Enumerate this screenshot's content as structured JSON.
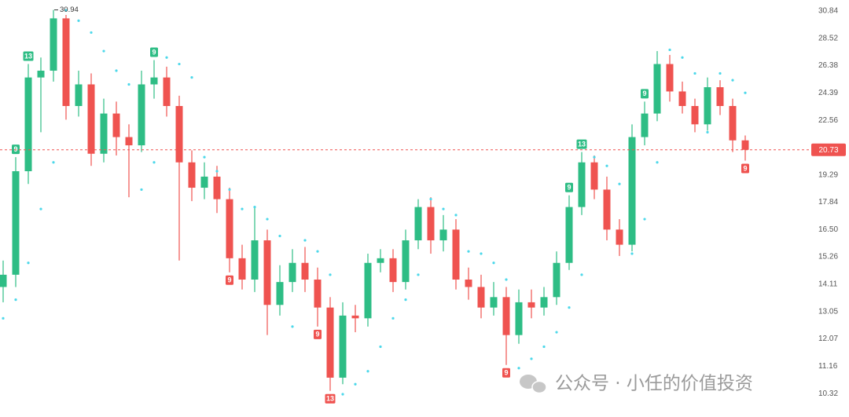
{
  "chart_data": {
    "type": "candlestick",
    "log": true,
    "ylim": [
      9.65,
      31.83
    ],
    "yticks": [
      10.32,
      11.16,
      12.07,
      13.05,
      14.11,
      15.26,
      {
        "value": 16.5,
        "label": "16.50"
      },
      17.84,
      19.29,
      22.56,
      24.39,
      26.38,
      28.52,
      30.84
    ],
    "open": [
      14,
      14.5,
      19.5,
      25.5,
      26,
      30.2,
      23.5,
      25,
      20.5,
      23,
      21.5,
      21,
      25,
      25.5,
      23.5,
      20,
      18.6,
      19.2,
      18,
      15.2,
      14.3,
      16,
      13.3,
      14.2,
      15,
      14.3,
      13.2,
      10.8,
      12.9,
      12.8,
      15,
      15.2,
      14.2,
      16,
      17.6,
      16,
      16.5,
      14.3,
      14,
      13.2,
      13.6,
      12.2,
      13.4,
      13.2,
      13.6,
      15,
      17.6,
      20,
      18.5,
      16.5,
      15.8,
      21.5,
      23,
      26.5,
      24.5,
      23.5,
      22.3,
      24.8,
      23.5,
      21.3
    ],
    "high": [
      15.1,
      20.3,
      26.5,
      27,
      30.94,
      30.5,
      26,
      25.8,
      24,
      23.8,
      22.3,
      26,
      26.8,
      26.3,
      24.2,
      20.7,
      20,
      19.8,
      18.6,
      15.8,
      17.6,
      16.5,
      14.9,
      15.6,
      15.7,
      14.8,
      13.6,
      13.4,
      13.3,
      15.4,
      15.6,
      15.6,
      16.5,
      18,
      18.1,
      17.2,
      17,
      14.8,
      14.5,
      14.2,
      14,
      13.9,
      13.9,
      14,
      15.5,
      18.2,
      20.6,
      20.4,
      19.2,
      17,
      22.3,
      23.8,
      27.5,
      27.2,
      25.2,
      24,
      25.5,
      25.3,
      24,
      21.6
    ],
    "low": [
      13.4,
      14,
      18.8,
      21.8,
      25.2,
      22.6,
      22.8,
      19.8,
      20,
      20.4,
      18.1,
      20.6,
      24,
      22.8,
      15.1,
      17.9,
      18,
      17.3,
      14.6,
      13.9,
      13.8,
      12.2,
      12.9,
      13.8,
      13.8,
      12.5,
      10.4,
      10.6,
      12.3,
      12.5,
      14.6,
      13.8,
      13.9,
      15.6,
      15.4,
      15.5,
      13.9,
      13.5,
      12.8,
      12.9,
      11.2,
      11.9,
      12.8,
      12.9,
      13.3,
      14.7,
      17.2,
      18,
      16,
      15.3,
      15.5,
      21,
      22.5,
      23.8,
      23,
      21.8,
      21.9,
      22.9,
      20.6,
      20.1
    ],
    "close": [
      14.5,
      19.5,
      25.5,
      26,
      30.2,
      23.5,
      25,
      20.5,
      23,
      21.5,
      21,
      25,
      25.5,
      23.5,
      20,
      18.6,
      19.2,
      18,
      15.2,
      14.3,
      16,
      13.3,
      14.2,
      15,
      14.3,
      13.2,
      10.8,
      12.9,
      12.8,
      15,
      15.2,
      14.2,
      16,
      17.6,
      16,
      16.5,
      14.3,
      14,
      13.2,
      13.6,
      12.2,
      13.4,
      13.2,
      13.6,
      15,
      17.6,
      20,
      18.5,
      16.5,
      15.8,
      21.5,
      23,
      26.5,
      24.5,
      23.5,
      22.3,
      24.8,
      23.5,
      21.3,
      20.73
    ],
    "sar": [
      12.8,
      13.5,
      15,
      17.5,
      20,
      30.9,
      30,
      29,
      27.5,
      26,
      25,
      18.5,
      20,
      27,
      26.5,
      25.5,
      20.3,
      19.5,
      18.5,
      17.5,
      17.6,
      17,
      16.2,
      12.5,
      16,
      15.5,
      14.5,
      10.3,
      10.6,
      11,
      11.8,
      12.8,
      13.5,
      14.5,
      18,
      17.5,
      17.2,
      15.5,
      15.4,
      15,
      14.3,
      11.1,
      11.4,
      11.8,
      12.3,
      13.2,
      14.5,
      20.3,
      19.8,
      18.8,
      15.4,
      17,
      20,
      27.6,
      27,
      25.8,
      21.8,
      25.8,
      25.3,
      24.4
    ],
    "td_up": [
      null,
      "9",
      "13",
      null,
      null,
      null,
      null,
      null,
      null,
      null,
      null,
      null,
      "9",
      null,
      null,
      null,
      null,
      null,
      null,
      null,
      null,
      null,
      null,
      null,
      null,
      null,
      null,
      null,
      null,
      null,
      null,
      null,
      null,
      null,
      null,
      null,
      null,
      null,
      null,
      null,
      null,
      null,
      null,
      null,
      null,
      "9",
      "13",
      null,
      null,
      null,
      null,
      "9",
      null,
      null,
      null,
      null,
      null,
      null,
      null,
      null
    ],
    "td_down": [
      null,
      null,
      null,
      null,
      null,
      null,
      null,
      null,
      null,
      null,
      null,
      null,
      null,
      null,
      null,
      null,
      null,
      null,
      "9",
      null,
      null,
      null,
      null,
      null,
      null,
      "9",
      "13",
      null,
      null,
      null,
      null,
      null,
      null,
      null,
      null,
      null,
      null,
      null,
      null,
      null,
      "9",
      null,
      null,
      null,
      null,
      null,
      null,
      null,
      null,
      null,
      null,
      null,
      null,
      null,
      null,
      null,
      null,
      null,
      null,
      "9"
    ],
    "up_color": "#2ebd85",
    "down_color": "#ef5350",
    "sar_color": "#4dd8ea",
    "watermark": "公众号 · 小任的价值投资"
  }
}
